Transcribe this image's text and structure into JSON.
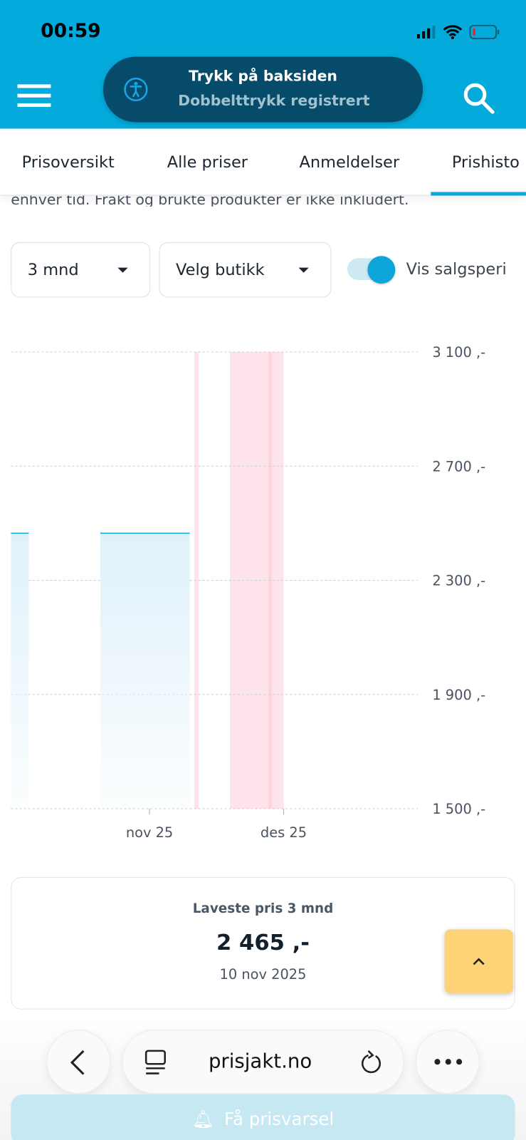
{
  "status_bar": {
    "time": "00:59",
    "icons": [
      "signal-icon",
      "wifi-icon",
      "battery-low-icon"
    ]
  },
  "header": {
    "menu_icon": "hamburger-icon",
    "search_icon": "search-icon",
    "brand_color": "#04aadb"
  },
  "toast": {
    "icon": "accessibility-icon",
    "title": "Trykk på baksiden",
    "subtitle": "Dobbelttrykk registrert"
  },
  "tabs": [
    {
      "label": "Prisoversikt"
    },
    {
      "label": "Alle priser"
    },
    {
      "label": "Anmeldelser"
    },
    {
      "label": "Prishisto",
      "active": true
    }
  ],
  "intro_text": "enhver tid. Frakt og brukte produkter er ikke inkludert.",
  "filters": {
    "period": "3 mnd",
    "store": "Velg butikk",
    "toggle_label": "Vis salgsperi",
    "toggle_on": true
  },
  "chart_data": {
    "type": "area",
    "y_ticks": [
      "3 100 ,-",
      "2 700 ,-",
      "2 300 ,-",
      "1 900 ,-",
      "1 500 ,-"
    ],
    "ylim": [
      1500,
      3100
    ],
    "x_ticks": [
      {
        "label": "nov 25",
        "date": "2025-11-01"
      },
      {
        "label": "des 25",
        "date": "2025-12-01"
      }
    ],
    "xlim": [
      "2025-10-01",
      "2025-12-31"
    ],
    "grid": true,
    "series": [
      {
        "color": "#0ea5d8",
        "segments": [
          {
            "start": "2025-10-01",
            "end": "2025-10-05",
            "value": 2465
          },
          {
            "start": "2025-10-21",
            "end": "2025-11-10",
            "value": 2465
          }
        ]
      }
    ],
    "sale_periods": [
      {
        "start": "2025-11-11",
        "end": "2025-11-12"
      },
      {
        "start": "2025-11-19",
        "end": "2025-12-01",
        "peak": "2025-11-28"
      }
    ],
    "sale_color": "#ffe3ea"
  },
  "lowest": {
    "label": "Laveste pris 3 mnd",
    "price": "2 465 ,-",
    "date": "10 nov 2025"
  },
  "browser": {
    "url": "prisjakt.no"
  },
  "price_alert": {
    "label": "Få prisvarsel"
  }
}
